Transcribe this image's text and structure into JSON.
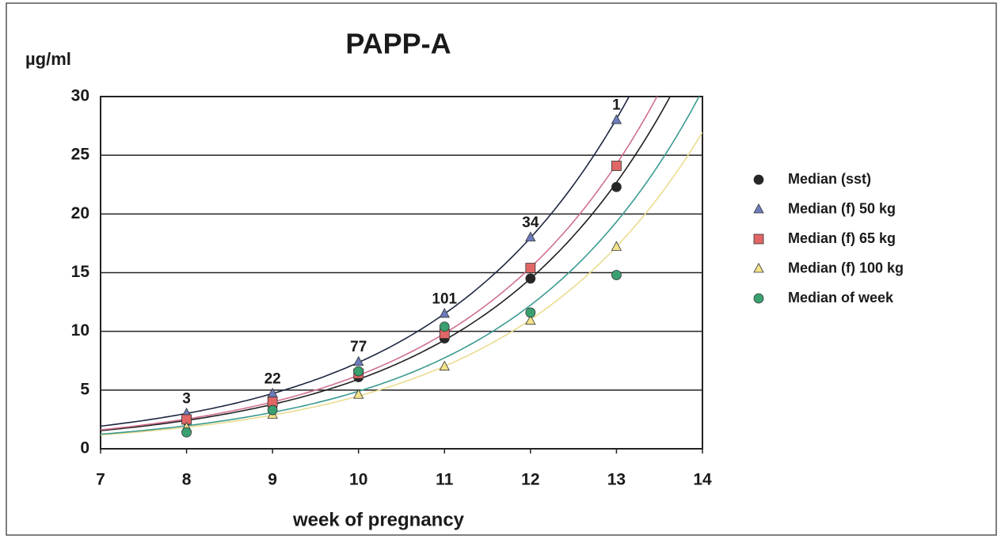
{
  "chart_data": {
    "type": "scatter",
    "title": "PAPP-A",
    "y_label": "µg/ml",
    "x_label": "week of pregnancy",
    "x": [
      8,
      9,
      10,
      11,
      12,
      13
    ],
    "trendline": "exponential",
    "series": [
      {
        "name": "Median (sst)",
        "color": "#262626",
        "marker": "circle",
        "trend_color": "#202020",
        "values": [
          2.4,
          3.7,
          6.1,
          9.4,
          14.5,
          22.3
        ]
      },
      {
        "name": "Median (f) 50 kg",
        "color": "#6c7bbb",
        "marker": "triangle",
        "trend_color": "#1c2640",
        "values": [
          3.0,
          4.7,
          7.4,
          11.5,
          18.0,
          28.0
        ]
      },
      {
        "name": "Median (f) 65 kg",
        "color": "#e06666",
        "marker": "square",
        "trend_color": "#d07090",
        "values": [
          2.5,
          4.0,
          6.4,
          9.8,
          15.4,
          24.1
        ]
      },
      {
        "name": "Median (f) 100 kg",
        "color": "#f2e28a",
        "marker": "triangle",
        "trend_color": "#eadc90",
        "values": [
          1.8,
          2.9,
          4.6,
          7.0,
          10.9,
          17.2
        ]
      },
      {
        "name": "Median of week",
        "color": "#3aa070",
        "marker": "circle",
        "trend_color": "#3a9a90",
        "values": [
          1.4,
          3.3,
          6.6,
          10.4,
          11.6,
          14.8
        ]
      }
    ],
    "annotations": [
      {
        "x": 8,
        "text": "3"
      },
      {
        "x": 9,
        "text": "22"
      },
      {
        "x": 10,
        "text": "77"
      },
      {
        "x": 11,
        "text": "101"
      },
      {
        "x": 12,
        "text": "34"
      },
      {
        "x": 13,
        "text": "1"
      }
    ],
    "xlim": [
      7,
      14
    ],
    "xticks": [
      7,
      8,
      9,
      10,
      11,
      12,
      13,
      14
    ],
    "ylim": [
      0,
      30
    ],
    "yticks": [
      0,
      5,
      10,
      15,
      20,
      25,
      30
    ],
    "grid": true,
    "legend": "right"
  }
}
